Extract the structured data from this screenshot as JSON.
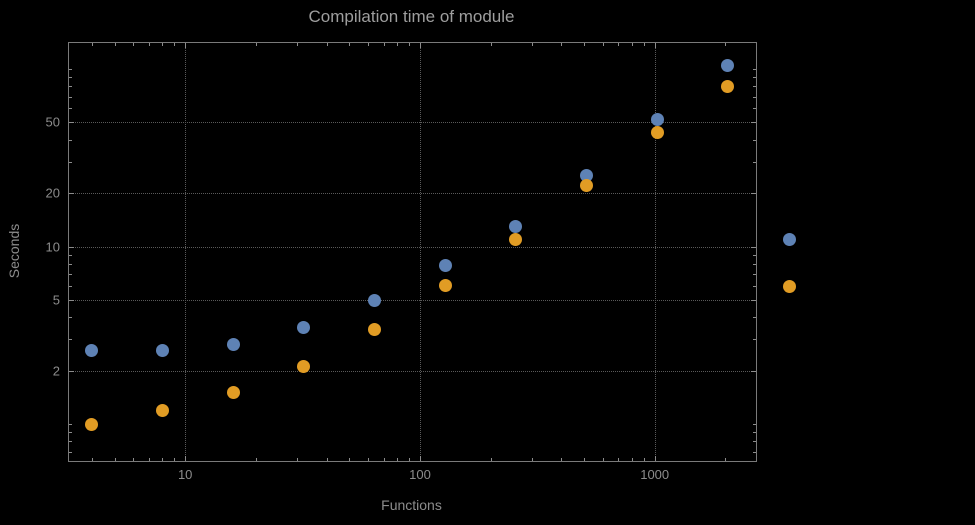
{
  "page": {
    "background": "#000000"
  },
  "chart_data": {
    "type": "scatter",
    "title": "Compilation time of module",
    "xlabel": "Functions",
    "ylabel": "Seconds",
    "xscale": "log",
    "yscale": "log",
    "xlim": [
      3.2,
      2700
    ],
    "ylim": [
      0.62,
      140
    ],
    "x_ticks": [
      10,
      100,
      1000
    ],
    "y_ticks": [
      2,
      5,
      10,
      20,
      50
    ],
    "grid": true,
    "legend_position": "right-of-plot",
    "x": [
      4,
      8,
      16,
      32,
      64,
      128,
      256,
      512,
      1024,
      2048
    ],
    "series": [
      {
        "name": "series-1-blue",
        "color": "#5e82b5",
        "values": [
          2.6,
          2.6,
          2.8,
          3.5,
          5.0,
          7.8,
          13,
          25,
          52,
          105
        ]
      },
      {
        "name": "series-2-orange",
        "color": "#e19c24",
        "values": [
          1.0,
          1.2,
          1.5,
          2.1,
          3.4,
          6.0,
          11,
          22,
          44,
          80
        ]
      }
    ],
    "styles": {
      "frame_color": "#7a7a7a",
      "grid_color": "#5a5a5a",
      "tick_color": "#8c8c8c",
      "text_color": "#8c8c8c",
      "title_color": "#9e9e9e"
    }
  }
}
